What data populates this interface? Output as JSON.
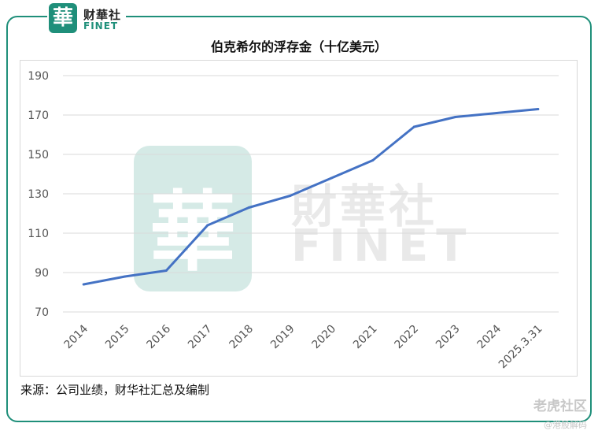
{
  "logo": {
    "char": "華",
    "cn": "财華社",
    "en": "FINET"
  },
  "watermark": {
    "char": "華",
    "cn": "財華社",
    "en": "FINET",
    "right": "老虎社区",
    "right_small": "@港股解码"
  },
  "colors": {
    "line": "#4472c4",
    "brand": "#1f8f7a",
    "grid": "#d9d9d9"
  },
  "chart_data": {
    "type": "line",
    "title": "伯克希尔的浮存金（十亿美元）",
    "xlabel": "",
    "ylabel": "",
    "categories": [
      "2014",
      "2015",
      "2016",
      "2017",
      "2018",
      "2019",
      "2020",
      "2021",
      "2022",
      "2023",
      "2024",
      "2025.3.31"
    ],
    "series": [
      {
        "values": [
          84,
          88,
          91,
          114,
          123,
          129,
          138,
          147,
          164,
          169,
          171,
          173
        ]
      }
    ],
    "yticks": [
      70,
      90,
      110,
      130,
      150,
      170,
      190
    ],
    "ylim": [
      70,
      190
    ],
    "grid": true,
    "legend": "none"
  },
  "source": "来源：公司业绩，财华社汇总及编制"
}
